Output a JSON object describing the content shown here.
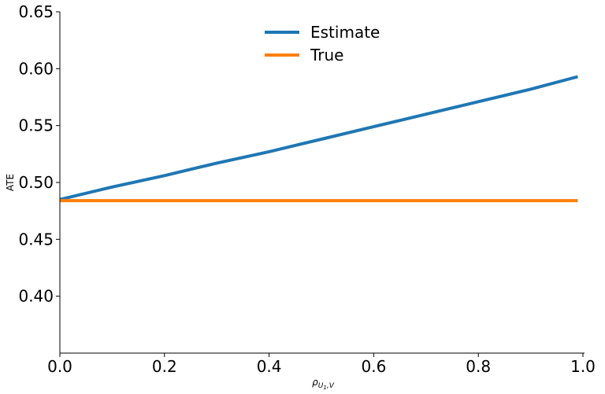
{
  "chart_data": {
    "type": "line",
    "xlabel_symbol": "ρ",
    "xlabel_sub": "U",
    "xlabel_subsub": "1",
    "xlabel_sub_rest": ",V",
    "ylabel": "ATE",
    "xlim": [
      0.0,
      1.0
    ],
    "ylim": [
      0.35,
      0.65
    ],
    "xticks": [
      "0.0",
      "0.2",
      "0.4",
      "0.6",
      "0.8",
      "1.0"
    ],
    "yticks": [
      "0.40",
      "0.45",
      "0.50",
      "0.55",
      "0.60",
      "0.65"
    ],
    "grid": false,
    "legend_position": "top-center",
    "series": [
      {
        "name": "Estimate",
        "color": "#1f77b4",
        "x": [
          0.0,
          0.1,
          0.2,
          0.3,
          0.4,
          0.5,
          0.6,
          0.7,
          0.8,
          0.9,
          0.99
        ],
        "y": [
          0.485,
          0.496,
          0.506,
          0.517,
          0.527,
          0.538,
          0.549,
          0.56,
          0.571,
          0.582,
          0.593
        ]
      },
      {
        "name": "True",
        "color": "#ff7f0e",
        "x": [
          0.0,
          0.99
        ],
        "y": [
          0.484,
          0.484
        ]
      }
    ]
  }
}
